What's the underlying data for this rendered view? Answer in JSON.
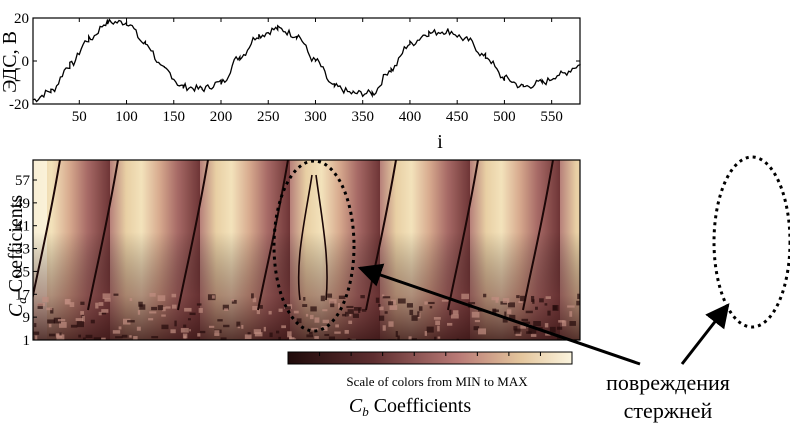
{
  "chart_data": [
    {
      "type": "line",
      "xlabel": "i",
      "ylabel": "ЭДС, В",
      "xlim": [
        1,
        580
      ],
      "ylim": [
        -20,
        20
      ],
      "xticks": [
        50,
        100,
        150,
        200,
        250,
        300,
        350,
        400,
        450,
        500,
        550
      ],
      "yticks": [
        20,
        0,
        -20
      ],
      "line_color": "#000000",
      "series": [
        {
          "x": [
            1,
            20,
            40,
            60,
            80,
            100,
            120,
            140,
            160,
            180,
            200,
            220,
            240,
            260,
            280,
            300,
            320,
            340,
            360,
            380,
            400,
            420,
            440,
            460,
            480,
            500,
            520,
            540,
            560,
            580
          ],
          "values": [
            -18,
            -14,
            -2,
            10,
            18,
            18,
            8,
            -4,
            -12,
            -13,
            -10,
            2,
            12,
            15,
            12,
            0,
            -12,
            -15,
            -15,
            -4,
            8,
            13,
            14,
            10,
            2,
            -8,
            -12,
            -10,
            -6,
            -2
          ]
        }
      ]
    },
    {
      "type": "heatmap",
      "xlabel": "",
      "ylabel_main": "C",
      "ylabel_sub": "a",
      "ylabel_rest": " Coefficients",
      "yticks": [
        1,
        9,
        17,
        25,
        33,
        41,
        49,
        57
      ],
      "ylim": [
        1,
        64
      ],
      "colorbar": {
        "label": "Scale of colors from MIN to MAX",
        "stops": [
          "#1f0a0a",
          "#5e2e30",
          "#b97a76",
          "#e4c69d",
          "#fbf4de"
        ]
      },
      "xcaption_main": "C",
      "xcaption_sub": "b",
      "xcaption_rest": " Coefficients",
      "annotation": [
        "повреждения",
        "стержней"
      ]
    }
  ]
}
